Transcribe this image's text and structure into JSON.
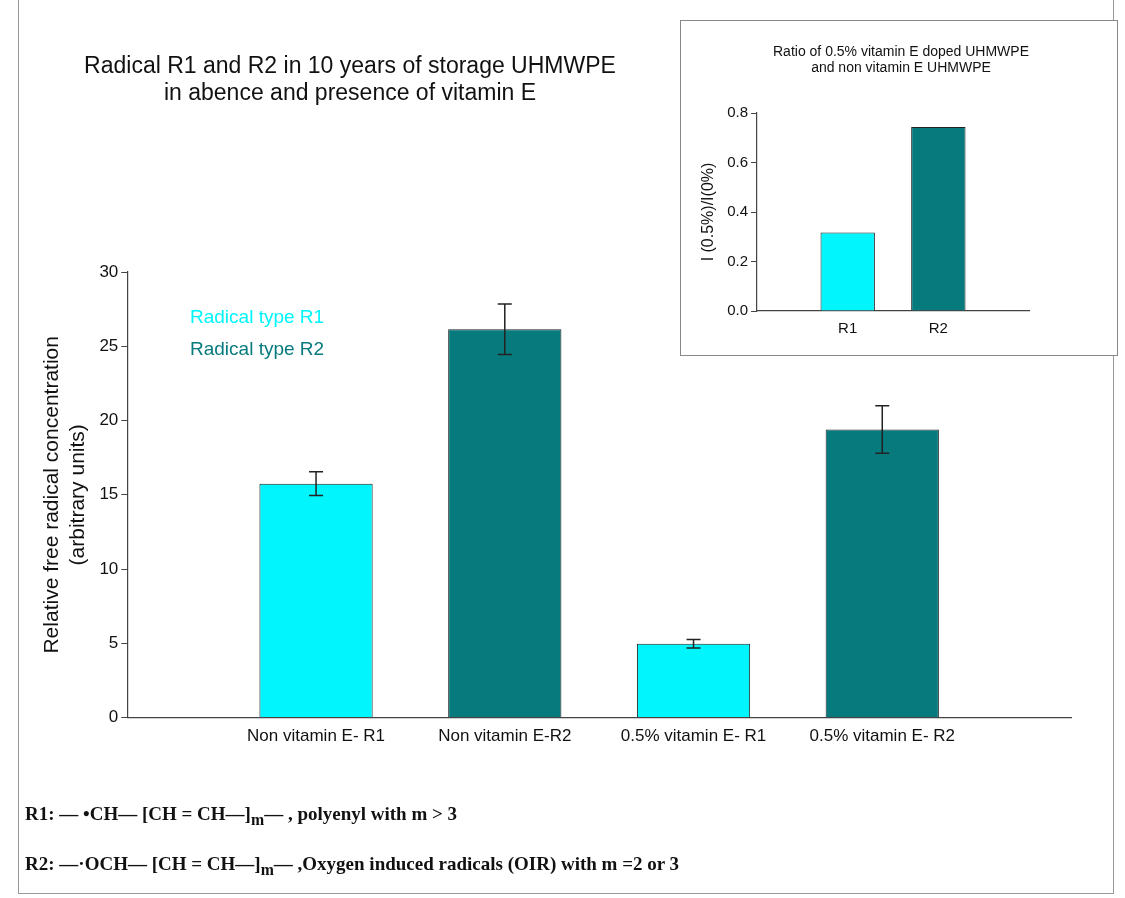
{
  "chart_data": [
    {
      "type": "bar",
      "title": "Radical R1 and R2 in 10 years of storage UHMWPE\nin abence and presence of vitamin E",
      "ylabel": "Relative free radical concentration\n(arbitrary units)",
      "categories": [
        "Non vitamin E- R1",
        "Non vitamin E-R2",
        "0.5% vitamin E- R1",
        "0.5% vitamin E- R2"
      ],
      "series": [
        {
          "name": "Radical type R1",
          "color": "#00f5fc",
          "values": [
            15.75,
            null,
            4.97,
            null
          ],
          "errors": [
            0.8,
            null,
            0.28,
            null
          ]
        },
        {
          "name": "Radical type R2",
          "color": "#077a7d",
          "values": [
            null,
            26.15,
            null,
            19.4
          ],
          "errors": [
            null,
            1.7,
            null,
            1.6
          ]
        }
      ],
      "ylim": [
        0,
        30
      ],
      "yticks": [
        0,
        5,
        10,
        15,
        20,
        25,
        30
      ],
      "grid": false,
      "legend": "top left",
      "annotations": [
        "R1: — •CH— [CH = CH—]$_{m}$— , polyenyl with m > 3",
        "R2: —·OCH— [CH = CH—]$_{m}$— ,Oxygen induced radicals (OIR) with m =2 or 3"
      ]
    },
    {
      "type": "bar",
      "title": "Ratio of 0.5% vitamin E doped UHMWPE\nand non vitamin E UHMWPE",
      "ylabel": "I (0.5%)/I(0%)",
      "categories": [
        "R1",
        "R2"
      ],
      "values": [
        0.317,
        0.743
      ],
      "colors": [
        "#00f5fc",
        "#077a7d"
      ],
      "ylim": [
        0,
        0.8
      ],
      "yticks": [
        {
          "value": 0,
          "label": "0.0"
        },
        {
          "value": 0.2,
          "label": "0.2"
        },
        {
          "value": 0.4,
          "label": "0.4"
        },
        {
          "value": 0.6,
          "label": "0.6"
        },
        {
          "value": 0.8,
          "label": "0.8"
        }
      ],
      "grid": false
    }
  ]
}
